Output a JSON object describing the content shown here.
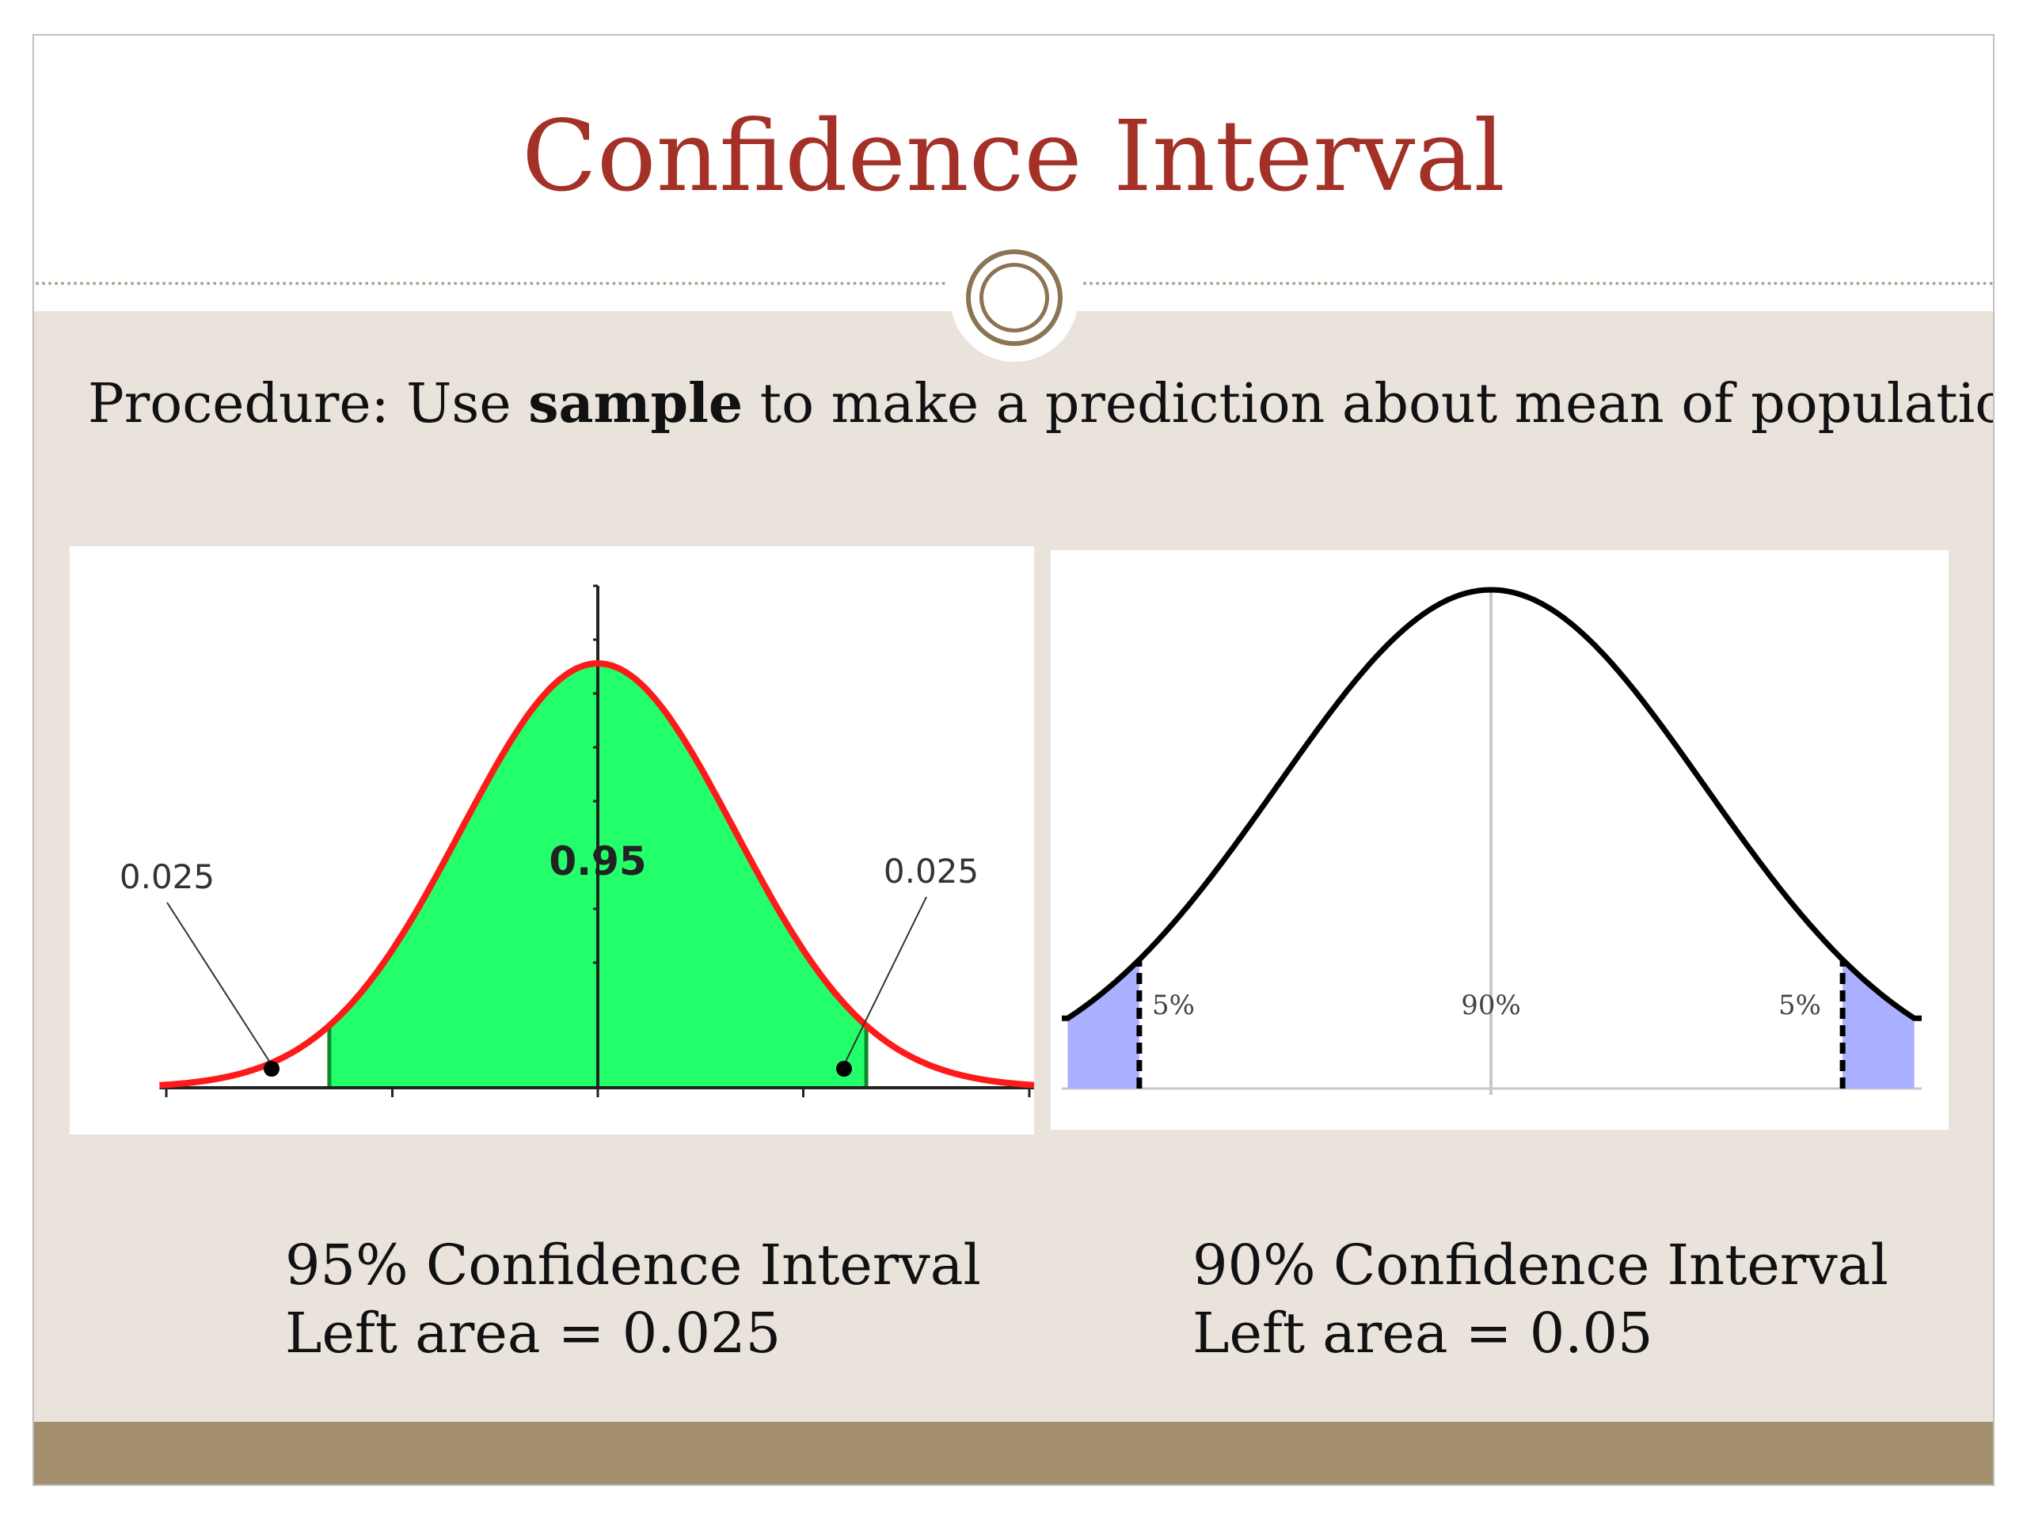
{
  "slide": {
    "title": "Confidence Interval",
    "procedure": {
      "prefix": "Procedure:  Use ",
      "bold": "sample",
      "suffix": " to make a prediction about mean of population"
    },
    "captions": {
      "left": {
        "line1": "95% Confidence Interval",
        "line2": "Left area = 0.025"
      },
      "right": {
        "line1": "90% Confidence Interval",
        "line2": "Left area = 0.05"
      }
    },
    "colors": {
      "title": "#a33127",
      "content_bg": "#e9e3dc",
      "footer": "#a38f6b",
      "ornament": "#8a7454"
    }
  },
  "chart_data": [
    {
      "type": "area",
      "distribution": "normal",
      "shaded_region": "central",
      "central_area": 0.95,
      "tail_areas": [
        0.025,
        0.025
      ],
      "labels": {
        "center": "0.95",
        "left_tail": "0.025",
        "right_tail": "0.025"
      },
      "colors": {
        "fill": "#22ff6a",
        "curve": "#ff1a1a",
        "boundary": "#0a8a2a"
      },
      "xlabel": "",
      "ylabel": ""
    },
    {
      "type": "area",
      "distribution": "normal",
      "shaded_region": "tails",
      "central_area": 0.9,
      "tail_areas": [
        0.05,
        0.05
      ],
      "labels": {
        "center": "90%",
        "left_tail": "5%",
        "right_tail": "5%"
      },
      "colors": {
        "fill": "#aab0ff",
        "curve": "#000000",
        "boundary": "#000000"
      },
      "xlabel": "",
      "ylabel": ""
    }
  ]
}
